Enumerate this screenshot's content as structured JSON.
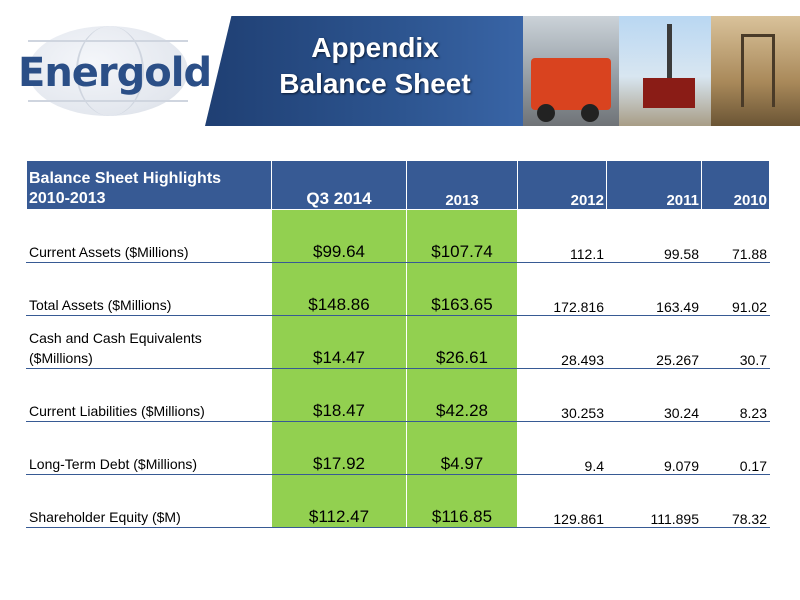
{
  "logo": {
    "text": "Energold"
  },
  "banner": {
    "title_line1": "Appendix",
    "title_line2": "Balance Sheet"
  },
  "table": {
    "header": {
      "label_line1": "Balance Sheet Highlights",
      "label_line2": "2010-2013",
      "columns": [
        "Q3 2014",
        "2013",
        "2012",
        "2011",
        "2010"
      ]
    },
    "rows": [
      {
        "label": "Current Assets ($Millions)",
        "q3_2014": "$99.64",
        "y2013": "$107.74",
        "y2012": "112.1",
        "y2011": "99.58",
        "y2010": "71.88"
      },
      {
        "label": "Total Assets ($Millions)",
        "q3_2014": "$148.86",
        "y2013": "$163.65",
        "y2012": "172.816",
        "y2011": "163.49",
        "y2010": "91.02"
      },
      {
        "label_line1": "Cash and Cash Equivalents",
        "label_line2": "($Millions)",
        "q3_2014": "$14.47",
        "y2013": "$26.61",
        "y2012": "28.493",
        "y2011": "25.267",
        "y2010": "30.7"
      },
      {
        "label": "Current Liabilities ($Millions)",
        "q3_2014": "$18.47",
        "y2013": "$42.28",
        "y2012": "30.253",
        "y2011": "30.24",
        "y2010": "8.23"
      },
      {
        "label": "Long-Term Debt ($Millions)",
        "q3_2014": "$17.92",
        "y2013": "$4.97",
        "y2012": "9.4",
        "y2011": "9.079",
        "y2010": "0.17"
      },
      {
        "label": "Shareholder Equity ($M)",
        "q3_2014": "$112.47",
        "y2013": "$116.85",
        "y2012": "129.861",
        "y2011": "111.895",
        "y2010": "78.32"
      }
    ]
  },
  "colors": {
    "header_blue": "#375a94",
    "highlight_green": "#92d050",
    "logo_blue": "#2b4f87"
  }
}
